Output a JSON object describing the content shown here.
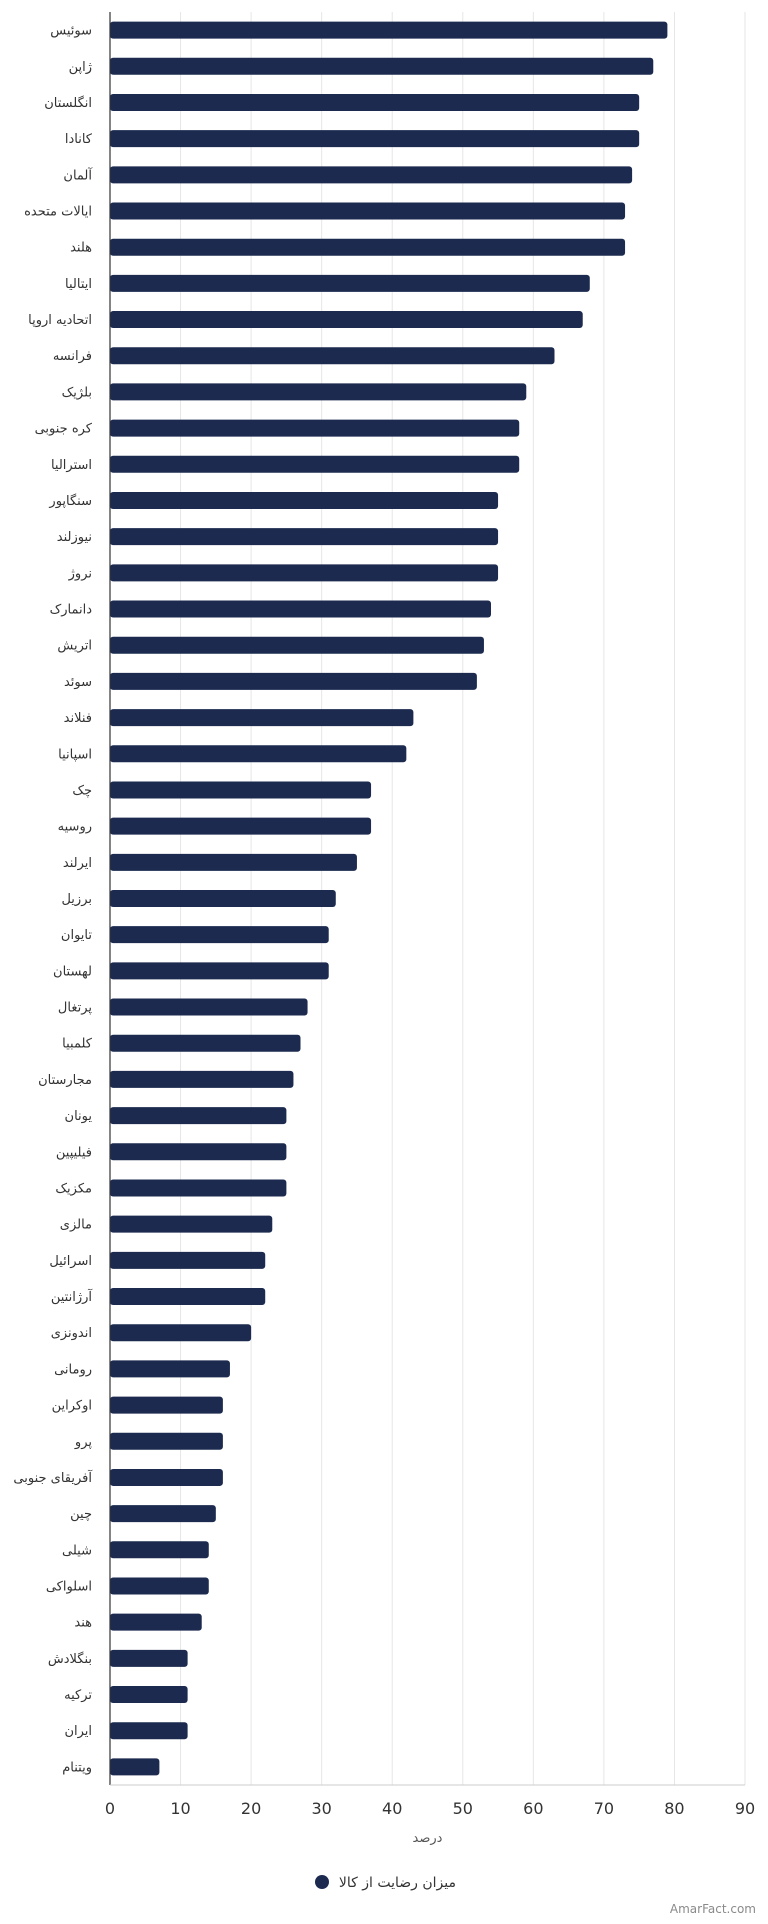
{
  "chart_data": {
    "type": "bar",
    "orientation": "horizontal",
    "categories": [
      "سوئیس",
      "ژاپن",
      "انگلستان",
      "کانادا",
      "آلمان",
      "ایالات متحده",
      "هلند",
      "ایتالیا",
      "اتحادیه اروپا",
      "فرانسه",
      "بلژیک",
      "کره جنوبی",
      "استرالیا",
      "سنگاپور",
      "نیوزلند",
      "نروژ",
      "دانمارک",
      "اتریش",
      "سوئد",
      "فنلاند",
      "اسپانیا",
      "چک",
      "روسیه",
      "ایرلند",
      "برزیل",
      "تایوان",
      "لهستان",
      "پرتغال",
      "کلمبیا",
      "مجارستان",
      "یونان",
      "فیلیپین",
      "مکزیک",
      "مالزی",
      "اسرائیل",
      "آرژانتین",
      "اندونزی",
      "رومانی",
      "اوکراین",
      "پرو",
      "آفریقای جنوبی",
      "چین",
      "شیلی",
      "اسلواکی",
      "هند",
      "بنگلادش",
      "ترکیه",
      "ایران",
      "ویتنام"
    ],
    "series": [
      {
        "name": "میزان رضایت از کالا",
        "color": "#1c2a4f",
        "values": [
          79,
          77,
          75,
          75,
          74,
          73,
          73,
          68,
          67,
          63,
          59,
          58,
          58,
          55,
          55,
          55,
          54,
          53,
          52,
          43,
          42,
          37,
          37,
          35,
          32,
          31,
          31,
          28,
          27,
          26,
          25,
          25,
          25,
          23,
          22,
          22,
          20,
          17,
          16,
          16,
          16,
          15,
          14,
          14,
          13,
          11,
          11,
          11,
          7
        ]
      }
    ],
    "xlabel": "درصد",
    "ylabel": "",
    "xlim": [
      0,
      90
    ],
    "xticks": [
      0,
      10,
      20,
      30,
      40,
      50,
      60,
      70,
      80,
      90
    ],
    "grid": true,
    "legend_position": "bottom-center"
  },
  "watermark": "AmarFact.com"
}
